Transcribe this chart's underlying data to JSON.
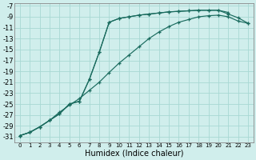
{
  "xlabel": "Humidex (Indice chaleur)",
  "bg_color": "#d0eeec",
  "line_color": "#1a6b5e",
  "grid_color": "#a8d8d4",
  "ylim": [
    -32,
    -6.5
  ],
  "xlim": [
    -0.5,
    23.5
  ],
  "yticks": [
    -7,
    -9,
    -11,
    -13,
    -15,
    -17,
    -19,
    -21,
    -23,
    -25,
    -27,
    -29,
    -31
  ],
  "xticks": [
    0,
    1,
    2,
    3,
    4,
    5,
    6,
    7,
    8,
    9,
    10,
    11,
    12,
    13,
    14,
    15,
    16,
    17,
    18,
    19,
    20,
    21,
    22,
    23
  ],
  "curve1_x": [
    0,
    1,
    2,
    3,
    4,
    5,
    6,
    7,
    8,
    9,
    10,
    11,
    12,
    13,
    14,
    15,
    16,
    17,
    18,
    19,
    20,
    21,
    22,
    23
  ],
  "curve1_y": [
    -30.8,
    -30.2,
    -29.2,
    -28.0,
    -26.8,
    -25.0,
    -24.5,
    -20.5,
    -15.5,
    -10.0,
    -9.3,
    -9.0,
    -8.7,
    -8.5,
    -8.3,
    -8.1,
    -8.0,
    -7.9,
    -7.8,
    -7.8,
    -7.8,
    -8.5,
    -9.2,
    -10.2
  ],
  "curve2_x": [
    0,
    1,
    2,
    3,
    4,
    5,
    6,
    7,
    8,
    9,
    10,
    11,
    12,
    13,
    14,
    15,
    16,
    17,
    18,
    19,
    20,
    21
  ],
  "curve2_y": [
    -30.8,
    -30.2,
    -29.2,
    -28.0,
    -26.8,
    -25.0,
    -24.5,
    -20.5,
    -15.5,
    -10.0,
    -9.3,
    -9.0,
    -8.7,
    -8.5,
    -8.3,
    -8.1,
    -8.0,
    -7.9,
    -7.8,
    -7.8,
    -7.8,
    -8.2
  ],
  "curve3_x": [
    0,
    1,
    2,
    3,
    4,
    5,
    6,
    7,
    8,
    9,
    10,
    11,
    12,
    13,
    14,
    15,
    16,
    17,
    18,
    19,
    20,
    21,
    22,
    23
  ],
  "curve3_y": [
    -30.8,
    -30.2,
    -29.2,
    -28.0,
    -26.5,
    -25.2,
    -24.0,
    -22.5,
    -21.0,
    -19.2,
    -17.5,
    -16.0,
    -14.5,
    -13.0,
    -11.8,
    -10.8,
    -10.0,
    -9.5,
    -9.0,
    -8.8,
    -8.7,
    -9.0,
    -9.8,
    -10.2
  ]
}
